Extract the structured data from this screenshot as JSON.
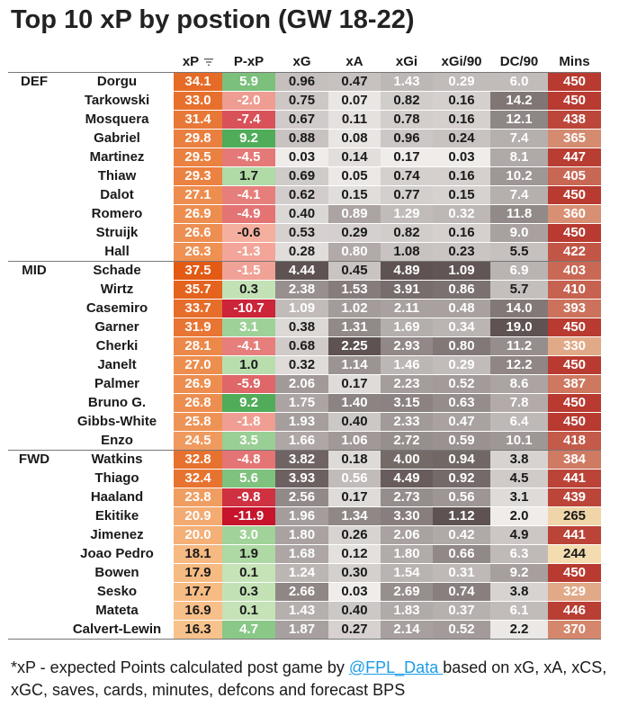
{
  "title": "Top 10 xP by postion (GW 18-22)",
  "chart_data": {
    "type": "table",
    "columns": [
      "",
      "",
      "xP",
      "P-xP",
      "xG",
      "xA",
      "xGi",
      "xGi/90",
      "DC/90",
      "Mins"
    ],
    "groups": [
      {
        "position": "DEF",
        "rows": [
          {
            "name": "Dorgu",
            "xP": "34.1",
            "pxp": "5.9",
            "xG": "0.96",
            "xA": "0.47",
            "xGi": "1.43",
            "xGi90": "0.29",
            "dc90": "6.0",
            "mins": "450"
          },
          {
            "name": "Tarkowski",
            "xP": "33.0",
            "pxp": "-2.0",
            "xG": "0.75",
            "xA": "0.07",
            "xGi": "0.82",
            "xGi90": "0.16",
            "dc90": "14.2",
            "mins": "450"
          },
          {
            "name": "Mosquera",
            "xP": "31.4",
            "pxp": "-7.4",
            "xG": "0.67",
            "xA": "0.11",
            "xGi": "0.78",
            "xGi90": "0.16",
            "dc90": "12.1",
            "mins": "438"
          },
          {
            "name": "Gabriel",
            "xP": "29.8",
            "pxp": "9.2",
            "xG": "0.88",
            "xA": "0.08",
            "xGi": "0.96",
            "xGi90": "0.24",
            "dc90": "7.4",
            "mins": "365"
          },
          {
            "name": "Martinez",
            "xP": "29.5",
            "pxp": "-4.5",
            "xG": "0.03",
            "xA": "0.14",
            "xGi": "0.17",
            "xGi90": "0.03",
            "dc90": "8.1",
            "mins": "447"
          },
          {
            "name": "Thiaw",
            "xP": "29.3",
            "pxp": "1.7",
            "xG": "0.69",
            "xA": "0.05",
            "xGi": "0.74",
            "xGi90": "0.16",
            "dc90": "10.2",
            "mins": "405"
          },
          {
            "name": "Dalot",
            "xP": "27.1",
            "pxp": "-4.1",
            "xG": "0.62",
            "xA": "0.15",
            "xGi": "0.77",
            "xGi90": "0.15",
            "dc90": "7.4",
            "mins": "450"
          },
          {
            "name": "Romero",
            "xP": "26.9",
            "pxp": "-4.9",
            "xG": "0.40",
            "xA": "0.89",
            "xGi": "1.29",
            "xGi90": "0.32",
            "dc90": "11.8",
            "mins": "360"
          },
          {
            "name": "Struijk",
            "xP": "26.6",
            "pxp": "-0.6",
            "xG": "0.53",
            "xA": "0.29",
            "xGi": "0.82",
            "xGi90": "0.16",
            "dc90": "9.0",
            "mins": "450"
          },
          {
            "name": "Hall",
            "xP": "26.3",
            "pxp": "-1.3",
            "xG": "0.28",
            "xA": "0.80",
            "xGi": "1.08",
            "xGi90": "0.23",
            "dc90": "5.5",
            "mins": "422"
          }
        ]
      },
      {
        "position": "MID",
        "rows": [
          {
            "name": "Schade",
            "xP": "37.5",
            "pxp": "-1.5",
            "xG": "4.44",
            "xA": "0.45",
            "xGi": "4.89",
            "xGi90": "1.09",
            "dc90": "6.9",
            "mins": "403"
          },
          {
            "name": "Wirtz",
            "xP": "35.7",
            "pxp": "0.3",
            "xG": "2.38",
            "xA": "1.53",
            "xGi": "3.91",
            "xGi90": "0.86",
            "dc90": "5.7",
            "mins": "410"
          },
          {
            "name": "Casemiro",
            "xP": "33.7",
            "pxp": "-10.7",
            "xG": "1.09",
            "xA": "1.02",
            "xGi": "2.11",
            "xGi90": "0.48",
            "dc90": "14.0",
            "mins": "393"
          },
          {
            "name": "Garner",
            "xP": "31.9",
            "pxp": "3.1",
            "xG": "0.38",
            "xA": "1.31",
            "xGi": "1.69",
            "xGi90": "0.34",
            "dc90": "19.0",
            "mins": "450"
          },
          {
            "name": "Cherki",
            "xP": "28.1",
            "pxp": "-4.1",
            "xG": "0.68",
            "xA": "2.25",
            "xGi": "2.93",
            "xGi90": "0.80",
            "dc90": "11.2",
            "mins": "330"
          },
          {
            "name": "Janelt",
            "xP": "27.0",
            "pxp": "1.0",
            "xG": "0.32",
            "xA": "1.14",
            "xGi": "1.46",
            "xGi90": "0.29",
            "dc90": "12.2",
            "mins": "450"
          },
          {
            "name": "Palmer",
            "xP": "26.9",
            "pxp": "-5.9",
            "xG": "2.06",
            "xA": "0.17",
            "xGi": "2.23",
            "xGi90": "0.52",
            "dc90": "8.6",
            "mins": "387"
          },
          {
            "name": "Bruno G.",
            "xP": "26.8",
            "pxp": "9.2",
            "xG": "1.75",
            "xA": "1.40",
            "xGi": "3.15",
            "xGi90": "0.63",
            "dc90": "7.8",
            "mins": "450"
          },
          {
            "name": "Gibbs-White",
            "xP": "25.8",
            "pxp": "-1.8",
            "xG": "1.93",
            "xA": "0.40",
            "xGi": "2.33",
            "xGi90": "0.47",
            "dc90": "6.4",
            "mins": "450"
          },
          {
            "name": "Enzo",
            "xP": "24.5",
            "pxp": "3.5",
            "xG": "1.66",
            "xA": "1.06",
            "xGi": "2.72",
            "xGi90": "0.59",
            "dc90": "10.1",
            "mins": "418"
          }
        ]
      },
      {
        "position": "FWD",
        "rows": [
          {
            "name": "Watkins",
            "xP": "32.8",
            "pxp": "-4.8",
            "xG": "3.82",
            "xA": "0.18",
            "xGi": "4.00",
            "xGi90": "0.94",
            "dc90": "3.8",
            "mins": "384"
          },
          {
            "name": "Thiago",
            "xP": "32.4",
            "pxp": "5.6",
            "xG": "3.93",
            "xA": "0.56",
            "xGi": "4.49",
            "xGi90": "0.92",
            "dc90": "4.5",
            "mins": "441"
          },
          {
            "name": "Haaland",
            "xP": "23.8",
            "pxp": "-9.8",
            "xG": "2.56",
            "xA": "0.17",
            "xGi": "2.73",
            "xGi90": "0.56",
            "dc90": "3.1",
            "mins": "439"
          },
          {
            "name": "Ekitike",
            "xP": "20.9",
            "pxp": "-11.9",
            "xG": "1.96",
            "xA": "1.34",
            "xGi": "3.30",
            "xGi90": "1.12",
            "dc90": "2.0",
            "mins": "265"
          },
          {
            "name": "Jimenez",
            "xP": "20.0",
            "pxp": "3.0",
            "xG": "1.80",
            "xA": "0.26",
            "xGi": "2.06",
            "xGi90": "0.42",
            "dc90": "4.9",
            "mins": "441"
          },
          {
            "name": "Joao Pedro",
            "xP": "18.1",
            "pxp": "1.9",
            "xG": "1.68",
            "xA": "0.12",
            "xGi": "1.80",
            "xGi90": "0.66",
            "dc90": "6.3",
            "mins": "244"
          },
          {
            "name": "Bowen",
            "xP": "17.9",
            "pxp": "0.1",
            "xG": "1.24",
            "xA": "0.30",
            "xGi": "1.54",
            "xGi90": "0.31",
            "dc90": "9.2",
            "mins": "450"
          },
          {
            "name": "Sesko",
            "xP": "17.7",
            "pxp": "0.3",
            "xG": "2.66",
            "xA": "0.03",
            "xGi": "2.69",
            "xGi90": "0.74",
            "dc90": "3.8",
            "mins": "329"
          },
          {
            "name": "Mateta",
            "xP": "16.9",
            "pxp": "0.1",
            "xG": "1.43",
            "xA": "0.40",
            "xGi": "1.83",
            "xGi90": "0.37",
            "dc90": "6.1",
            "mins": "446"
          },
          {
            "name": "Calvert-Lewin",
            "xP": "16.3",
            "pxp": "4.7",
            "xG": "1.87",
            "xA": "0.27",
            "xGi": "2.14",
            "xGi90": "0.52",
            "dc90": "2.2",
            "mins": "370"
          }
        ]
      }
    ]
  },
  "footnote": {
    "prefix": "*xP - expected Points calculated post game by ",
    "link": "@FPL_Data ",
    "suffix": "based on xG, xA, xCS, xGC, saves, cards, minutes, defcons and forecast BPS"
  },
  "colors": {
    "xp_scale": [
      "#f8c28c",
      "#e25a14"
    ],
    "pxp_negative": [
      "#f7b7a5",
      "#c7142c"
    ],
    "pxp_positive": [
      "#c6e4b8",
      "#2e9c3c"
    ],
    "grey_scale": [
      "#efecea",
      "#5e5352"
    ],
    "mins_scale": [
      "#f3ddb0",
      "#b83a30"
    ]
  }
}
